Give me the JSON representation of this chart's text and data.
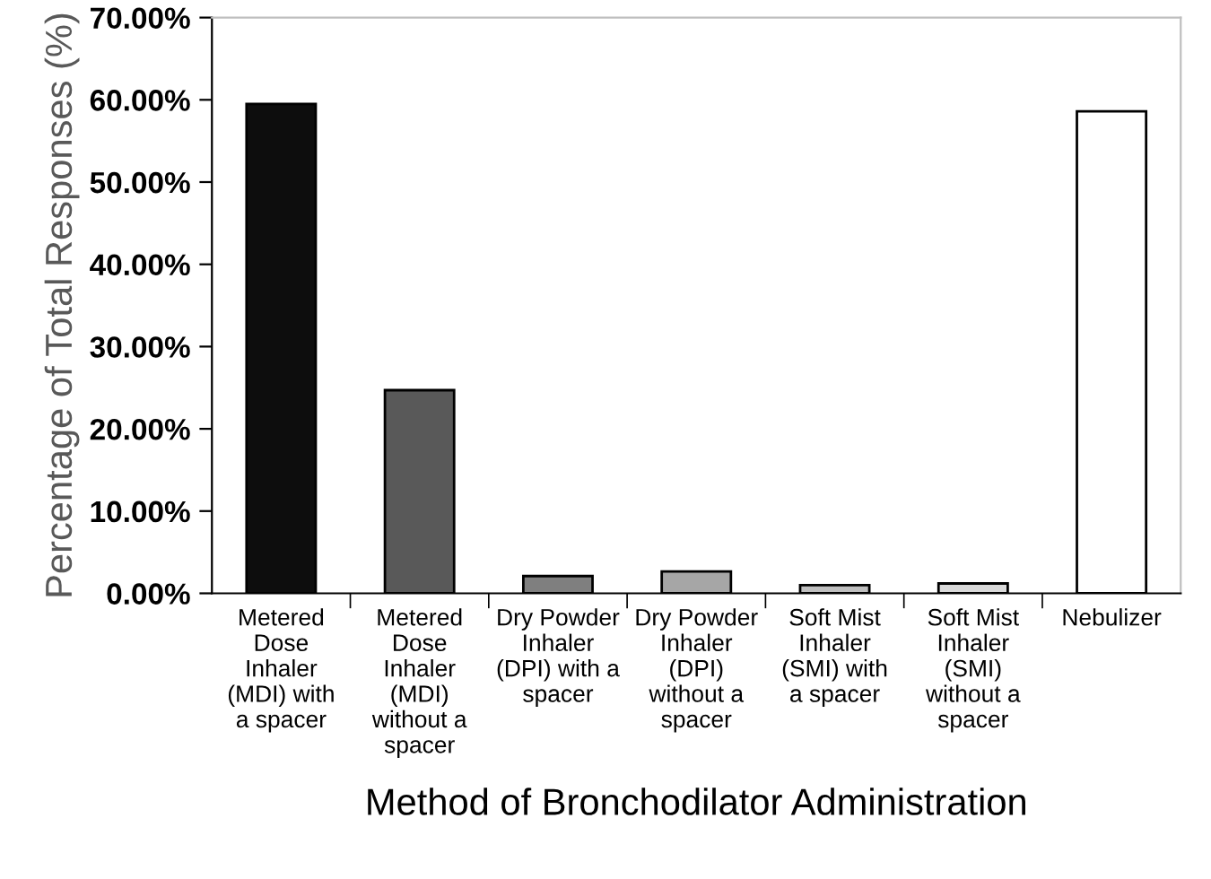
{
  "chart_data": {
    "type": "bar",
    "xlabel": "Method of Bronchodilator Administration",
    "ylabel": "Percentage of Total Responses (%)",
    "categories": [
      "Metered\nDose\nInhaler\n(MDI) with\na spacer",
      "Metered\nDose\nInhaler\n(MDI)\nwithout a\nspacer",
      "Dry Powder\nInhaler\n(DPI) with a\nspacer",
      "Dry Powder\nInhaler\n(DPI)\nwithout a\nspacer",
      "Soft Mist\nInhaler\n(SMI) with\na spacer",
      "Soft Mist\nInhaler\n(SMI)\nwithout a\nspacer",
      "Nebulizer"
    ],
    "values": [
      59.5,
      24.7,
      2.1,
      2.65,
      1.0,
      1.2,
      58.6
    ],
    "colors": [
      "#0d0d0d",
      "#595959",
      "#7f7f7f",
      "#a6a6a6",
      "#bfbfbf",
      "#d9d9d9",
      "#ffffff"
    ],
    "ylim": [
      0,
      70
    ],
    "yticks": [
      {
        "value": 0,
        "label": "0.00%"
      },
      {
        "value": 10,
        "label": "10.00%"
      },
      {
        "value": 20,
        "label": "20.00%"
      },
      {
        "value": 30,
        "label": "30.00%"
      },
      {
        "value": 40,
        "label": "40.00%"
      },
      {
        "value": 50,
        "label": "50.00%"
      },
      {
        "value": 60,
        "label": "60.00%"
      },
      {
        "value": 70,
        "label": "70.00%"
      }
    ],
    "grid": false,
    "legend": false
  }
}
